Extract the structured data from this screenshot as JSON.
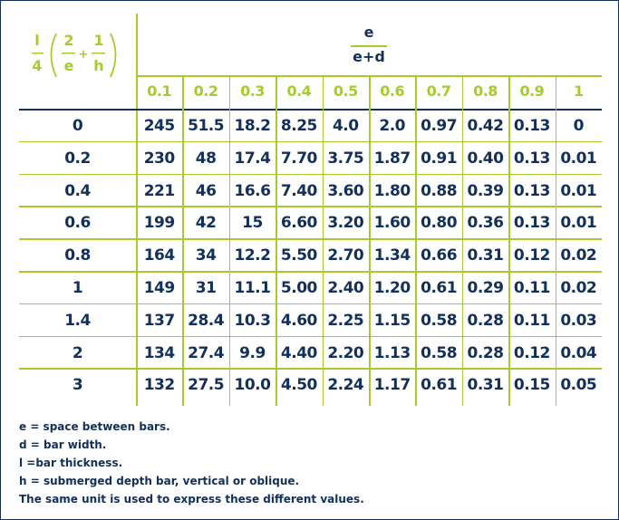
{
  "formula": {
    "l": "l",
    "four": "4",
    "two": "2",
    "e": "e",
    "plus": "+",
    "one": "1",
    "h": "h"
  },
  "ratio_header": {
    "numerator": "e",
    "denominator": "e+d"
  },
  "columns": [
    "0.1",
    "0.2",
    "0.3",
    "0.4",
    "0.5",
    "0.6",
    "0.7",
    "0.8",
    "0.9",
    "1"
  ],
  "rows": [
    {
      "label": "0",
      "values": [
        "245",
        "51.5",
        "18.2",
        "8.25",
        "4.0",
        "2.0",
        "0.97",
        "0.42",
        "0.13",
        "0"
      ]
    },
    {
      "label": "0.2",
      "values": [
        "230",
        "48",
        "17.4",
        "7.70",
        "3.75",
        "1.87",
        "0.91",
        "0.40",
        "0.13",
        "0.01"
      ]
    },
    {
      "label": "0.4",
      "values": [
        "221",
        "46",
        "16.6",
        "7.40",
        "3.60",
        "1.80",
        "0.88",
        "0.39",
        "0.13",
        "0.01"
      ]
    },
    {
      "label": "0.6",
      "values": [
        "199",
        "42",
        "15",
        "6.60",
        "3.20",
        "1.60",
        "0.80",
        "0.36",
        "0.13",
        "0.01"
      ]
    },
    {
      "label": "0.8",
      "values": [
        "164",
        "34",
        "12.2",
        "5.50",
        "2.70",
        "1.34",
        "0.66",
        "0.31",
        "0.12",
        "0.02"
      ]
    },
    {
      "label": "1",
      "values": [
        "149",
        "31",
        "11.1",
        "5.00",
        "2.40",
        "1.20",
        "0.61",
        "0.29",
        "0.11",
        "0.02"
      ]
    },
    {
      "label": "1.4",
      "values": [
        "137",
        "28.4",
        "10.3",
        "4.60",
        "2.25",
        "1.15",
        "0.58",
        "0.28",
        "0.11",
        "0.03"
      ]
    },
    {
      "label": "2",
      "values": [
        "134",
        "27.4",
        "9.9",
        "4.40",
        "2.20",
        "1.13",
        "0.58",
        "0.28",
        "0.12",
        "0.04"
      ]
    },
    {
      "label": "3",
      "values": [
        "132",
        "27.5",
        "10.0",
        "4.50",
        "2.24",
        "1.17",
        "0.61",
        "0.31",
        "0.15",
        "0.05"
      ]
    }
  ],
  "notes": [
    "e = space between bars.",
    "d = bar width.",
    "l =bar thickness.",
    "h = submerged depth bar, vertical or oblique.",
    "The same unit is used to express these different values."
  ],
  "colors": {
    "accent_green": "#a6cc2a",
    "navy": "#12305a"
  }
}
